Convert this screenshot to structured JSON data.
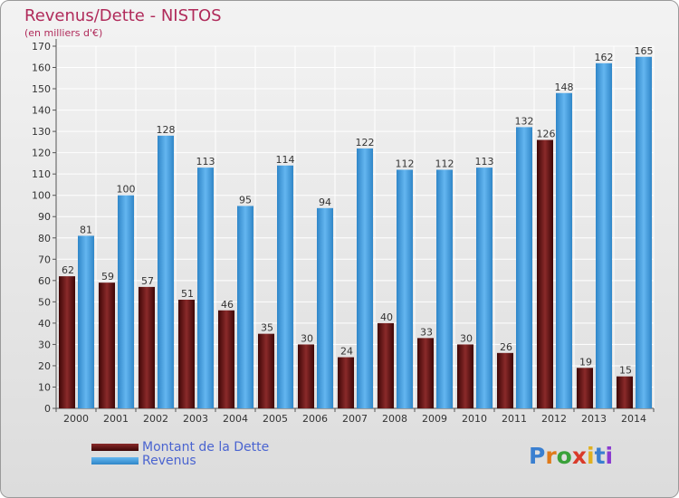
{
  "header": {
    "title": "Revenus/Dette - NISTOS",
    "subtitle": "(en milliers d'€)"
  },
  "legend": {
    "debt_label": "Montant de la Dette",
    "revenue_label": "Revenus"
  },
  "logo": {
    "text": "Proxiti"
  },
  "colors": {
    "debt": "#6b1515",
    "revenue": "#4ea5e6",
    "title": "#b02a5a",
    "legend_text": "#4a64d0"
  },
  "chart_data": {
    "type": "bar",
    "title": "Revenus/Dette - NISTOS",
    "ylabel": "(en milliers d'€)",
    "xlabel": "",
    "ylim": [
      0,
      170
    ],
    "yticks": [
      0,
      10,
      20,
      30,
      40,
      50,
      60,
      70,
      80,
      90,
      100,
      110,
      120,
      130,
      140,
      150,
      160,
      170
    ],
    "categories": [
      "2000",
      "2001",
      "2002",
      "2003",
      "2004",
      "2005",
      "2006",
      "2007",
      "2008",
      "2009",
      "2010",
      "2011",
      "2012",
      "2013",
      "2014"
    ],
    "series": [
      {
        "name": "Montant de la Dette",
        "values": [
          62,
          59,
          57,
          51,
          46,
          35,
          30,
          24,
          40,
          33,
          30,
          26,
          126,
          19,
          15
        ]
      },
      {
        "name": "Revenus",
        "values": [
          81,
          100,
          128,
          113,
          95,
          114,
          94,
          122,
          112,
          112,
          113,
          132,
          148,
          162,
          165
        ]
      }
    ],
    "grid": true,
    "legend_position": "bottom-left"
  }
}
